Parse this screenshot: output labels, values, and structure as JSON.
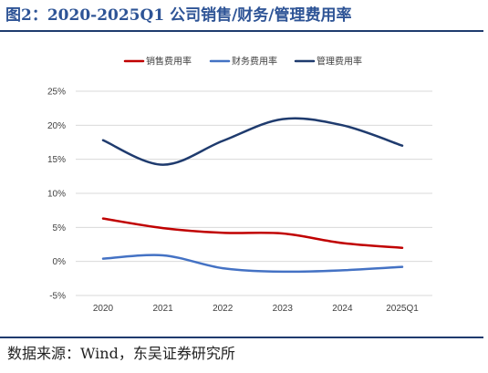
{
  "figure": {
    "title": "图2：2020-2025Q1 公司销售/财务/管理费用率",
    "source": "数据来源：Wind，东吴证券研究所"
  },
  "colors": {
    "title": "#2e5496",
    "rule": "#1f3b6e",
    "grid": "#d9d9d9"
  },
  "chart_data": {
    "type": "line",
    "categories": [
      "2020",
      "2021",
      "2022",
      "2023",
      "2024",
      "2025Q1"
    ],
    "ylim": [
      -5,
      25
    ],
    "yticks": [
      "25%",
      "20%",
      "15%",
      "10%",
      "5%",
      "0%",
      "-5%"
    ],
    "grid": true,
    "legend_position": "top",
    "smooth": true,
    "series": [
      {
        "name": "销售费用率",
        "color": "#c00000",
        "values": [
          6.3,
          4.9,
          4.2,
          4.1,
          2.7,
          2.0
        ]
      },
      {
        "name": "财务费用率",
        "color": "#4472c4",
        "values": [
          0.4,
          0.9,
          -1.0,
          -1.5,
          -1.3,
          -0.8
        ]
      },
      {
        "name": "管理费用率",
        "color": "#1f3b6e",
        "values": [
          17.8,
          14.2,
          17.7,
          20.9,
          20.0,
          17.0
        ]
      }
    ]
  }
}
